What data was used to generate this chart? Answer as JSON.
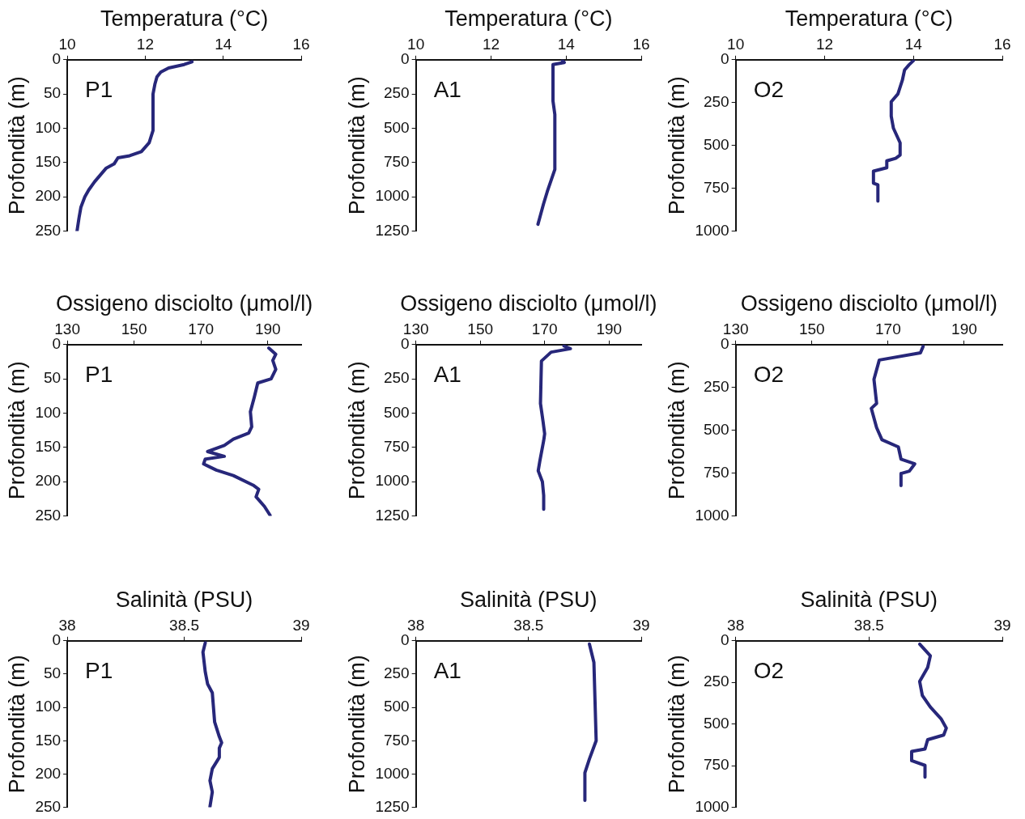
{
  "chart_data": [
    {
      "type": "line",
      "title": "Temperatura (°C)",
      "ylabel": "Profondità (m)",
      "annotations": [
        "P1"
      ],
      "color": "#27277a",
      "xlim": [
        10,
        16
      ],
      "xticks": [
        10,
        12,
        14,
        16
      ],
      "ylim": [
        250,
        0
      ],
      "yticks": [
        0,
        50,
        100,
        150,
        200,
        250
      ],
      "x": [
        13.2,
        13.0,
        12.6,
        12.4,
        12.3,
        12.25,
        12.2,
        12.2,
        12.1,
        11.9,
        11.6,
        11.3,
        11.2,
        11.0,
        10.85,
        10.7,
        10.55,
        10.45,
        10.35,
        10.3,
        10.25
      ],
      "values": [
        3,
        7,
        12,
        18,
        25,
        35,
        50,
        103,
        121,
        134,
        140,
        143,
        152,
        158,
        168,
        178,
        190,
        200,
        215,
        231,
        250
      ]
    },
    {
      "type": "line",
      "title": "Temperatura (°C)",
      "ylabel": "Profondità (m)",
      "annotations": [
        "A1"
      ],
      "color": "#27277a",
      "xlim": [
        10,
        16
      ],
      "xticks": [
        10,
        12,
        14,
        16
      ],
      "ylim": [
        1250,
        0
      ],
      "yticks": [
        0,
        250,
        500,
        750,
        1000,
        1250
      ],
      "x": [
        13.9,
        13.95,
        13.65,
        13.65,
        13.7,
        13.7,
        13.6,
        13.5,
        13.4,
        13.3,
        13.25
      ],
      "values": [
        5,
        20,
        35,
        300,
        400,
        800,
        880,
        960,
        1050,
        1150,
        1200
      ]
    },
    {
      "type": "line",
      "title": "Temperatura (°C)",
      "ylabel": "Profondità (m)",
      "annotations": [
        "O2"
      ],
      "color": "#27277a",
      "xlim": [
        10,
        16
      ],
      "xticks": [
        10,
        12,
        14,
        16
      ],
      "ylim": [
        1000,
        0
      ],
      "yticks": [
        0,
        250,
        500,
        750,
        1000
      ],
      "x": [
        14.0,
        13.9,
        13.8,
        13.75,
        13.65,
        13.5,
        13.5,
        13.55,
        13.7,
        13.7,
        13.6,
        13.4,
        13.4,
        13.1,
        13.1,
        13.2,
        13.2
      ],
      "values": [
        5,
        30,
        60,
        120,
        200,
        245,
        330,
        400,
        485,
        556,
        575,
        590,
        630,
        650,
        720,
        730,
        825
      ]
    },
    {
      "type": "line",
      "title": "Ossigeno disciolto (μmol/l)",
      "ylabel": "Profondità (m)",
      "annotations": [
        "P1"
      ],
      "color": "#27277a",
      "xlim": [
        130,
        200
      ],
      "xticks": [
        130,
        150,
        170,
        190
      ],
      "ylim": [
        250,
        0
      ],
      "yticks": [
        0,
        50,
        100,
        150,
        200,
        250
      ],
      "x": [
        190.3,
        192.4,
        191.5,
        192.4,
        191,
        187,
        186,
        184.8,
        185.2,
        184.3,
        179.7,
        177,
        172,
        177,
        171.3,
        170.8,
        174.6,
        179.7,
        185.6,
        187.3,
        186.5,
        189,
        190.7
      ],
      "values": [
        5,
        14,
        23,
        36,
        50,
        56,
        76,
        98,
        120,
        129,
        138,
        147,
        156,
        163,
        167,
        174,
        183,
        191,
        205,
        211,
        222,
        236,
        249
      ]
    },
    {
      "type": "line",
      "title": "Ossigeno disciolto (μmol/l)",
      "ylabel": "Profondità (m)",
      "annotations": [
        "A1"
      ],
      "color": "#27277a",
      "xlim": [
        130,
        200
      ],
      "xticks": [
        130,
        150,
        170,
        190
      ],
      "ylim": [
        1250,
        0
      ],
      "yticks": [
        0,
        250,
        500,
        750,
        1000,
        1250
      ],
      "x": [
        176,
        178,
        172,
        169,
        168.7,
        169.5,
        170,
        169.7,
        168.5,
        168,
        169.3,
        169.7,
        169.7
      ],
      "values": [
        10,
        30,
        55,
        120,
        430,
        560,
        650,
        700,
        850,
        920,
        1000,
        1100,
        1200
      ]
    },
    {
      "type": "line",
      "title": "Ossigeno disciolto (μmol/l)",
      "ylabel": "Profondità (m)",
      "annotations": [
        "O2"
      ],
      "color": "#27277a",
      "xlim": [
        130,
        200
      ],
      "xticks": [
        130,
        150,
        170,
        190
      ],
      "ylim": [
        1000,
        0
      ],
      "yticks": [
        0,
        250,
        500,
        750,
        1000
      ],
      "x": [
        179.2,
        178.5,
        167.7,
        166.3,
        167,
        165.6,
        167,
        168.4,
        172.7,
        173.4,
        177,
        175.6,
        173.4,
        173.4
      ],
      "values": [
        11,
        48,
        90,
        203,
        343,
        372,
        485,
        555,
        597,
        668,
        696,
        738,
        752,
        822
      ]
    },
    {
      "type": "line",
      "title": "Salinità (PSU)",
      "ylabel": "Profondità (m)",
      "annotations": [
        "P1"
      ],
      "color": "#27277a",
      "xlim": [
        38,
        39
      ],
      "xticks": [
        38,
        38.5,
        39
      ],
      "ylim": [
        250,
        0
      ],
      "yticks": [
        0,
        50,
        100,
        150,
        200,
        250
      ],
      "x": [
        38.59,
        38.58,
        38.59,
        38.6,
        38.62,
        38.63,
        38.65,
        38.66,
        38.65,
        38.65,
        38.62,
        38.61,
        38.62,
        38.61
      ],
      "values": [
        3,
        17,
        47,
        65,
        78,
        122,
        144,
        153,
        161,
        175,
        192,
        210,
        227,
        249
      ]
    },
    {
      "type": "line",
      "title": "Salinità (PSU)",
      "ylabel": "Profondità (m)",
      "annotations": [
        "A1"
      ],
      "color": "#27277a",
      "xlim": [
        38,
        39
      ],
      "xticks": [
        38,
        38.5,
        39
      ],
      "ylim": [
        1250,
        0
      ],
      "yticks": [
        0,
        250,
        500,
        750,
        1000,
        1250
      ],
      "x": [
        38.77,
        38.79,
        38.8,
        38.77,
        38.75,
        38.75
      ],
      "values": [
        24,
        162,
        750,
        887,
        991,
        1198
      ]
    },
    {
      "type": "line",
      "title": "Salinità (PSU)",
      "ylabel": "Profondità (m)",
      "annotations": [
        "O2"
      ],
      "color": "#27277a",
      "xlim": [
        38,
        39
      ],
      "xticks": [
        38,
        38.5,
        39
      ],
      "ylim": [
        1000,
        0
      ],
      "yticks": [
        0,
        250,
        500,
        750,
        1000
      ],
      "x": [
        38.69,
        38.73,
        38.72,
        38.69,
        38.7,
        38.73,
        38.77,
        38.79,
        38.78,
        38.72,
        38.71,
        38.66,
        38.66,
        38.71,
        38.71
      ],
      "values": [
        20,
        90,
        160,
        244,
        328,
        398,
        468,
        524,
        566,
        594,
        650,
        664,
        720,
        748,
        818
      ]
    }
  ]
}
